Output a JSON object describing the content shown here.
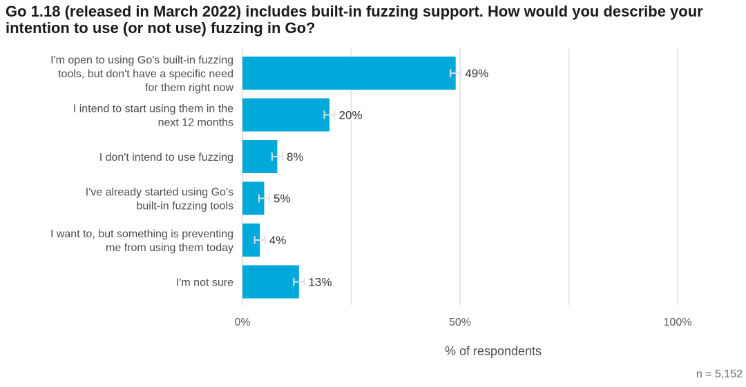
{
  "chart_data": {
    "type": "bar",
    "orientation": "horizontal",
    "title": "Go 1.18 (released in March 2022) includes built-in fuzzing support. How would you describe your intention to use (or not use) fuzzing in Go?",
    "categories": [
      [
        "I'm open to using Go's built-in fuzzing",
        "tools, but don't have a specific need",
        "for them right now"
      ],
      [
        "I intend to start using them in the",
        "next 12 months"
      ],
      [
        "I don't intend to use fuzzing"
      ],
      [
        "I've already started using Go's",
        "built-in fuzzing tools"
      ],
      [
        "I want to, but something is preventing",
        "me from using them today"
      ],
      [
        "I'm not sure"
      ]
    ],
    "values": [
      49,
      20,
      8,
      5,
      4,
      13
    ],
    "value_labels": [
      "49%",
      "20%",
      "8%",
      "5%",
      "4%",
      "13%"
    ],
    "error_margin": 1.2,
    "xlim": [
      0,
      100
    ],
    "xticks": [
      0,
      50,
      100
    ],
    "xtick_labels": [
      "0%",
      "50%",
      "100%"
    ],
    "minor_gridlines": [
      25,
      75
    ],
    "xlabel": "% of respondents",
    "note": "n =  5,152",
    "colors": {
      "bar": "#00a9d9",
      "grid": "#e5e5e5",
      "error_bar": "#e0e0e0"
    }
  }
}
